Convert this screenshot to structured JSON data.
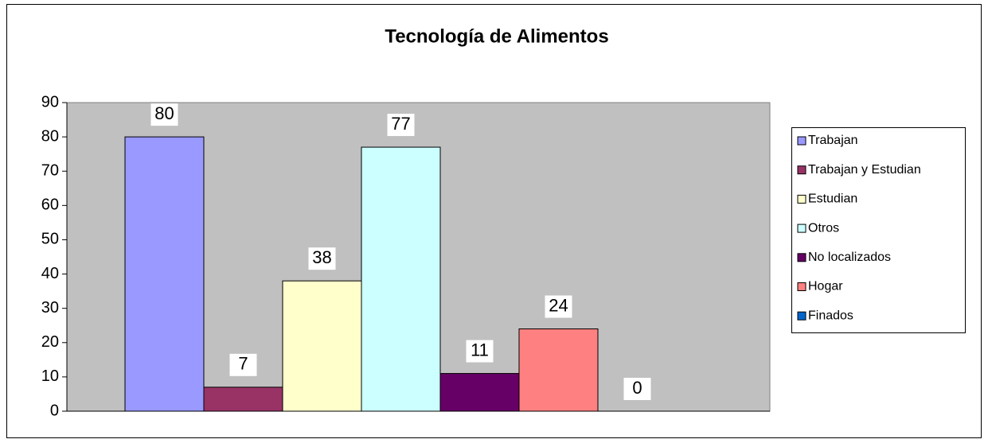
{
  "chart_data": {
    "type": "bar",
    "title": "Tecnología de Alimentos",
    "series": [
      {
        "name": "Trabajan",
        "color": "#9999ff",
        "values": [
          80
        ]
      },
      {
        "name": "Trabajan y Estudian",
        "color": "#993366",
        "values": [
          7
        ]
      },
      {
        "name": "Estudian",
        "color": "#ffffcc",
        "values": [
          38
        ]
      },
      {
        "name": "Otros",
        "color": "#ccffff",
        "values": [
          77
        ]
      },
      {
        "name": "No localizados",
        "color": "#660066",
        "values": [
          11
        ]
      },
      {
        "name": "Hogar",
        "color": "#ff8080",
        "values": [
          24
        ]
      },
      {
        "name": "Finados",
        "color": "#0066cc",
        "values": [
          0
        ]
      }
    ],
    "ylim": [
      0,
      90
    ],
    "yticks": [
      0,
      10,
      20,
      30,
      40,
      50,
      60,
      70,
      80,
      90
    ],
    "plot_background": "#c0c0c0",
    "legend": "right"
  }
}
